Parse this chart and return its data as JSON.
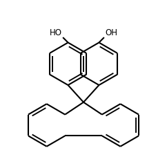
{
  "bg_color": "#ffffff",
  "line_color": "#000000",
  "lw": 1.5,
  "dbo": 0.055,
  "font_size": 8.5
}
